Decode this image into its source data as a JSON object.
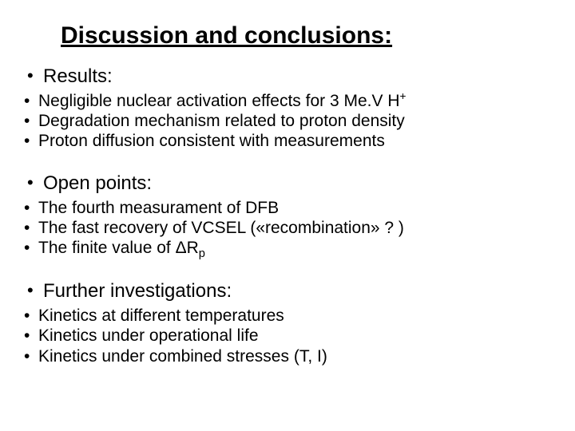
{
  "title": "Discussion and conclusions:",
  "sections": [
    {
      "heading": "Results:",
      "items": [
        "Negligible nuclear activation effects for 3 Me.V H",
        "Degradation mechanism related to proton density",
        "Proton diffusion consistent with measurements"
      ],
      "superscript_on_first": "+"
    },
    {
      "heading": "Open points:",
      "items": [
        "The fourth measurament of DFB",
        "The fast recovery of VCSEL («recombination» ? )",
        "The finite value of ΔR"
      ],
      "subscript_on_last": "p"
    },
    {
      "heading": "Further investigations:",
      "items": [
        "Kinetics at different temperatures",
        "Kinetics under operational life",
        "Kinetics under combined stresses (T, I)"
      ]
    }
  ],
  "colors": {
    "background": "#ffffff",
    "text": "#000000"
  },
  "typography": {
    "title_fontsize": 30,
    "heading_fontsize": 24,
    "item_fontsize": 21,
    "font_family": "Arial"
  }
}
